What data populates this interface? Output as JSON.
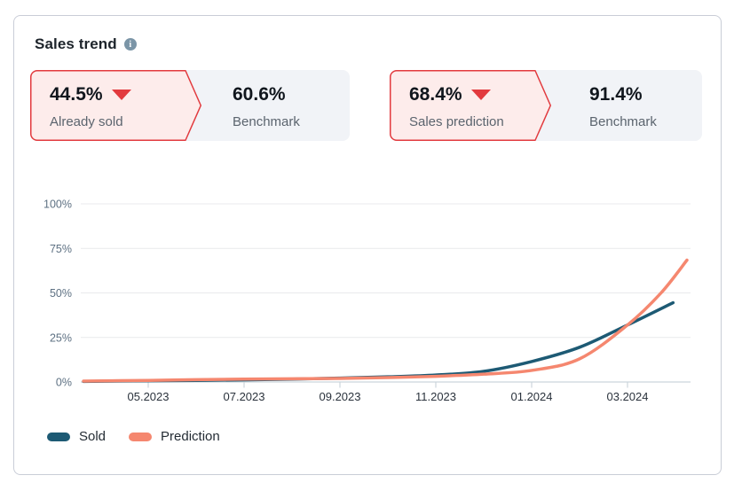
{
  "card": {
    "title": "Sales trend"
  },
  "kpi_banners": [
    {
      "value": "44.5%",
      "trend": "down",
      "label": "Already sold",
      "benchmark_value": "60.6%",
      "benchmark_label": "Benchmark"
    },
    {
      "value": "68.4%",
      "trend": "down",
      "label": "Sales prediction",
      "benchmark_value": "91.4%",
      "benchmark_label": "Benchmark"
    }
  ],
  "colors": {
    "sold": "#1d5a74",
    "prediction": "#f5876f",
    "alert_red": "#e23a3e",
    "alert_pink_fill": "#fdeceb",
    "banner_gray": "#f1f3f7",
    "gridline": "#e9eaec",
    "axis_line": "#ccd5dc",
    "tick": "#c3cdd6",
    "y_label": "#5e7183",
    "x_label": "#2a323c"
  },
  "chart_data": {
    "type": "line",
    "title": "Sales trend",
    "xlabel": "",
    "ylabel": "",
    "ylim": [
      0,
      100
    ],
    "grid": true,
    "legend_position": "bottom-left",
    "y_ticks": [
      {
        "value": 100,
        "label": "100%"
      },
      {
        "value": 75,
        "label": "75%"
      },
      {
        "value": 50,
        "label": "50%"
      },
      {
        "value": 25,
        "label": "25%"
      },
      {
        "value": 0,
        "label": "0%"
      }
    ],
    "x_ticks": [
      {
        "m": 1,
        "label": "05.2023"
      },
      {
        "m": 3,
        "label": "07.2023"
      },
      {
        "m": 5,
        "label": "09.2023"
      },
      {
        "m": 7,
        "label": "11.2023"
      },
      {
        "m": 9,
        "label": "01.2024"
      },
      {
        "m": 11,
        "label": "03.2024"
      }
    ],
    "x_unit": "months, 1 = 05.2023, +1 per month",
    "legend": [
      {
        "name": "Sold",
        "color": "#1d5a74"
      },
      {
        "name": "Prediction",
        "color": "#f5876f"
      }
    ],
    "series": [
      {
        "name": "Sold",
        "color": "#1d5a74",
        "points": [
          [
            -0.35,
            0.3
          ],
          [
            1,
            0.7
          ],
          [
            2,
            0.9
          ],
          [
            3,
            1.2
          ],
          [
            4,
            1.6
          ],
          [
            5,
            2.2
          ],
          [
            6,
            2.9
          ],
          [
            7,
            3.9
          ],
          [
            8,
            6
          ],
          [
            9,
            11.5
          ],
          [
            10,
            19.5
          ],
          [
            11,
            32
          ],
          [
            11.95,
            44.5
          ]
        ]
      },
      {
        "name": "Prediction",
        "color": "#f5876f",
        "points": [
          [
            -0.35,
            0.5
          ],
          [
            1,
            0.9
          ],
          [
            2,
            1.3
          ],
          [
            3,
            1.6
          ],
          [
            4,
            1.8
          ],
          [
            5,
            2.0
          ],
          [
            6,
            2.5
          ],
          [
            7,
            3.2
          ],
          [
            8,
            4.4
          ],
          [
            9,
            6.5
          ],
          [
            10,
            13
          ],
          [
            11,
            32
          ],
          [
            11.7,
            50
          ],
          [
            12.24,
            68.4
          ]
        ]
      }
    ]
  }
}
